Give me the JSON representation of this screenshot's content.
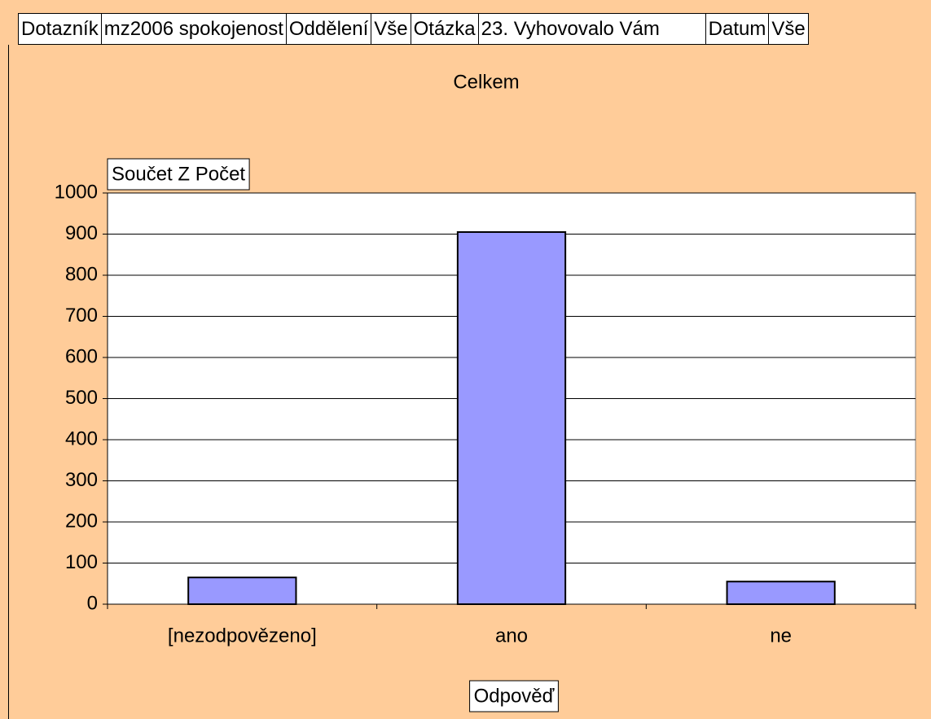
{
  "filters": [
    {
      "name": "Dotazník",
      "value": "mz2006 spokojenost"
    },
    {
      "name": "Oddělení",
      "value": "Vše"
    },
    {
      "name": "Otázka",
      "value": "23. Vyhovovalo Vám"
    },
    {
      "name": "Datum",
      "value": "Vše"
    }
  ],
  "chart_data": {
    "type": "bar",
    "title": "Celkem",
    "y_label": "Součet Z Počet",
    "x_label": "Odpověď",
    "categories": [
      "[nezodpovězeno]",
      "ano",
      "ne"
    ],
    "values": [
      65,
      905,
      55
    ],
    "color": "#9999ff",
    "ylim": [
      0,
      1000
    ],
    "yticks": [
      0,
      100,
      200,
      300,
      400,
      500,
      600,
      700,
      800,
      900,
      1000
    ],
    "grid": true
  }
}
